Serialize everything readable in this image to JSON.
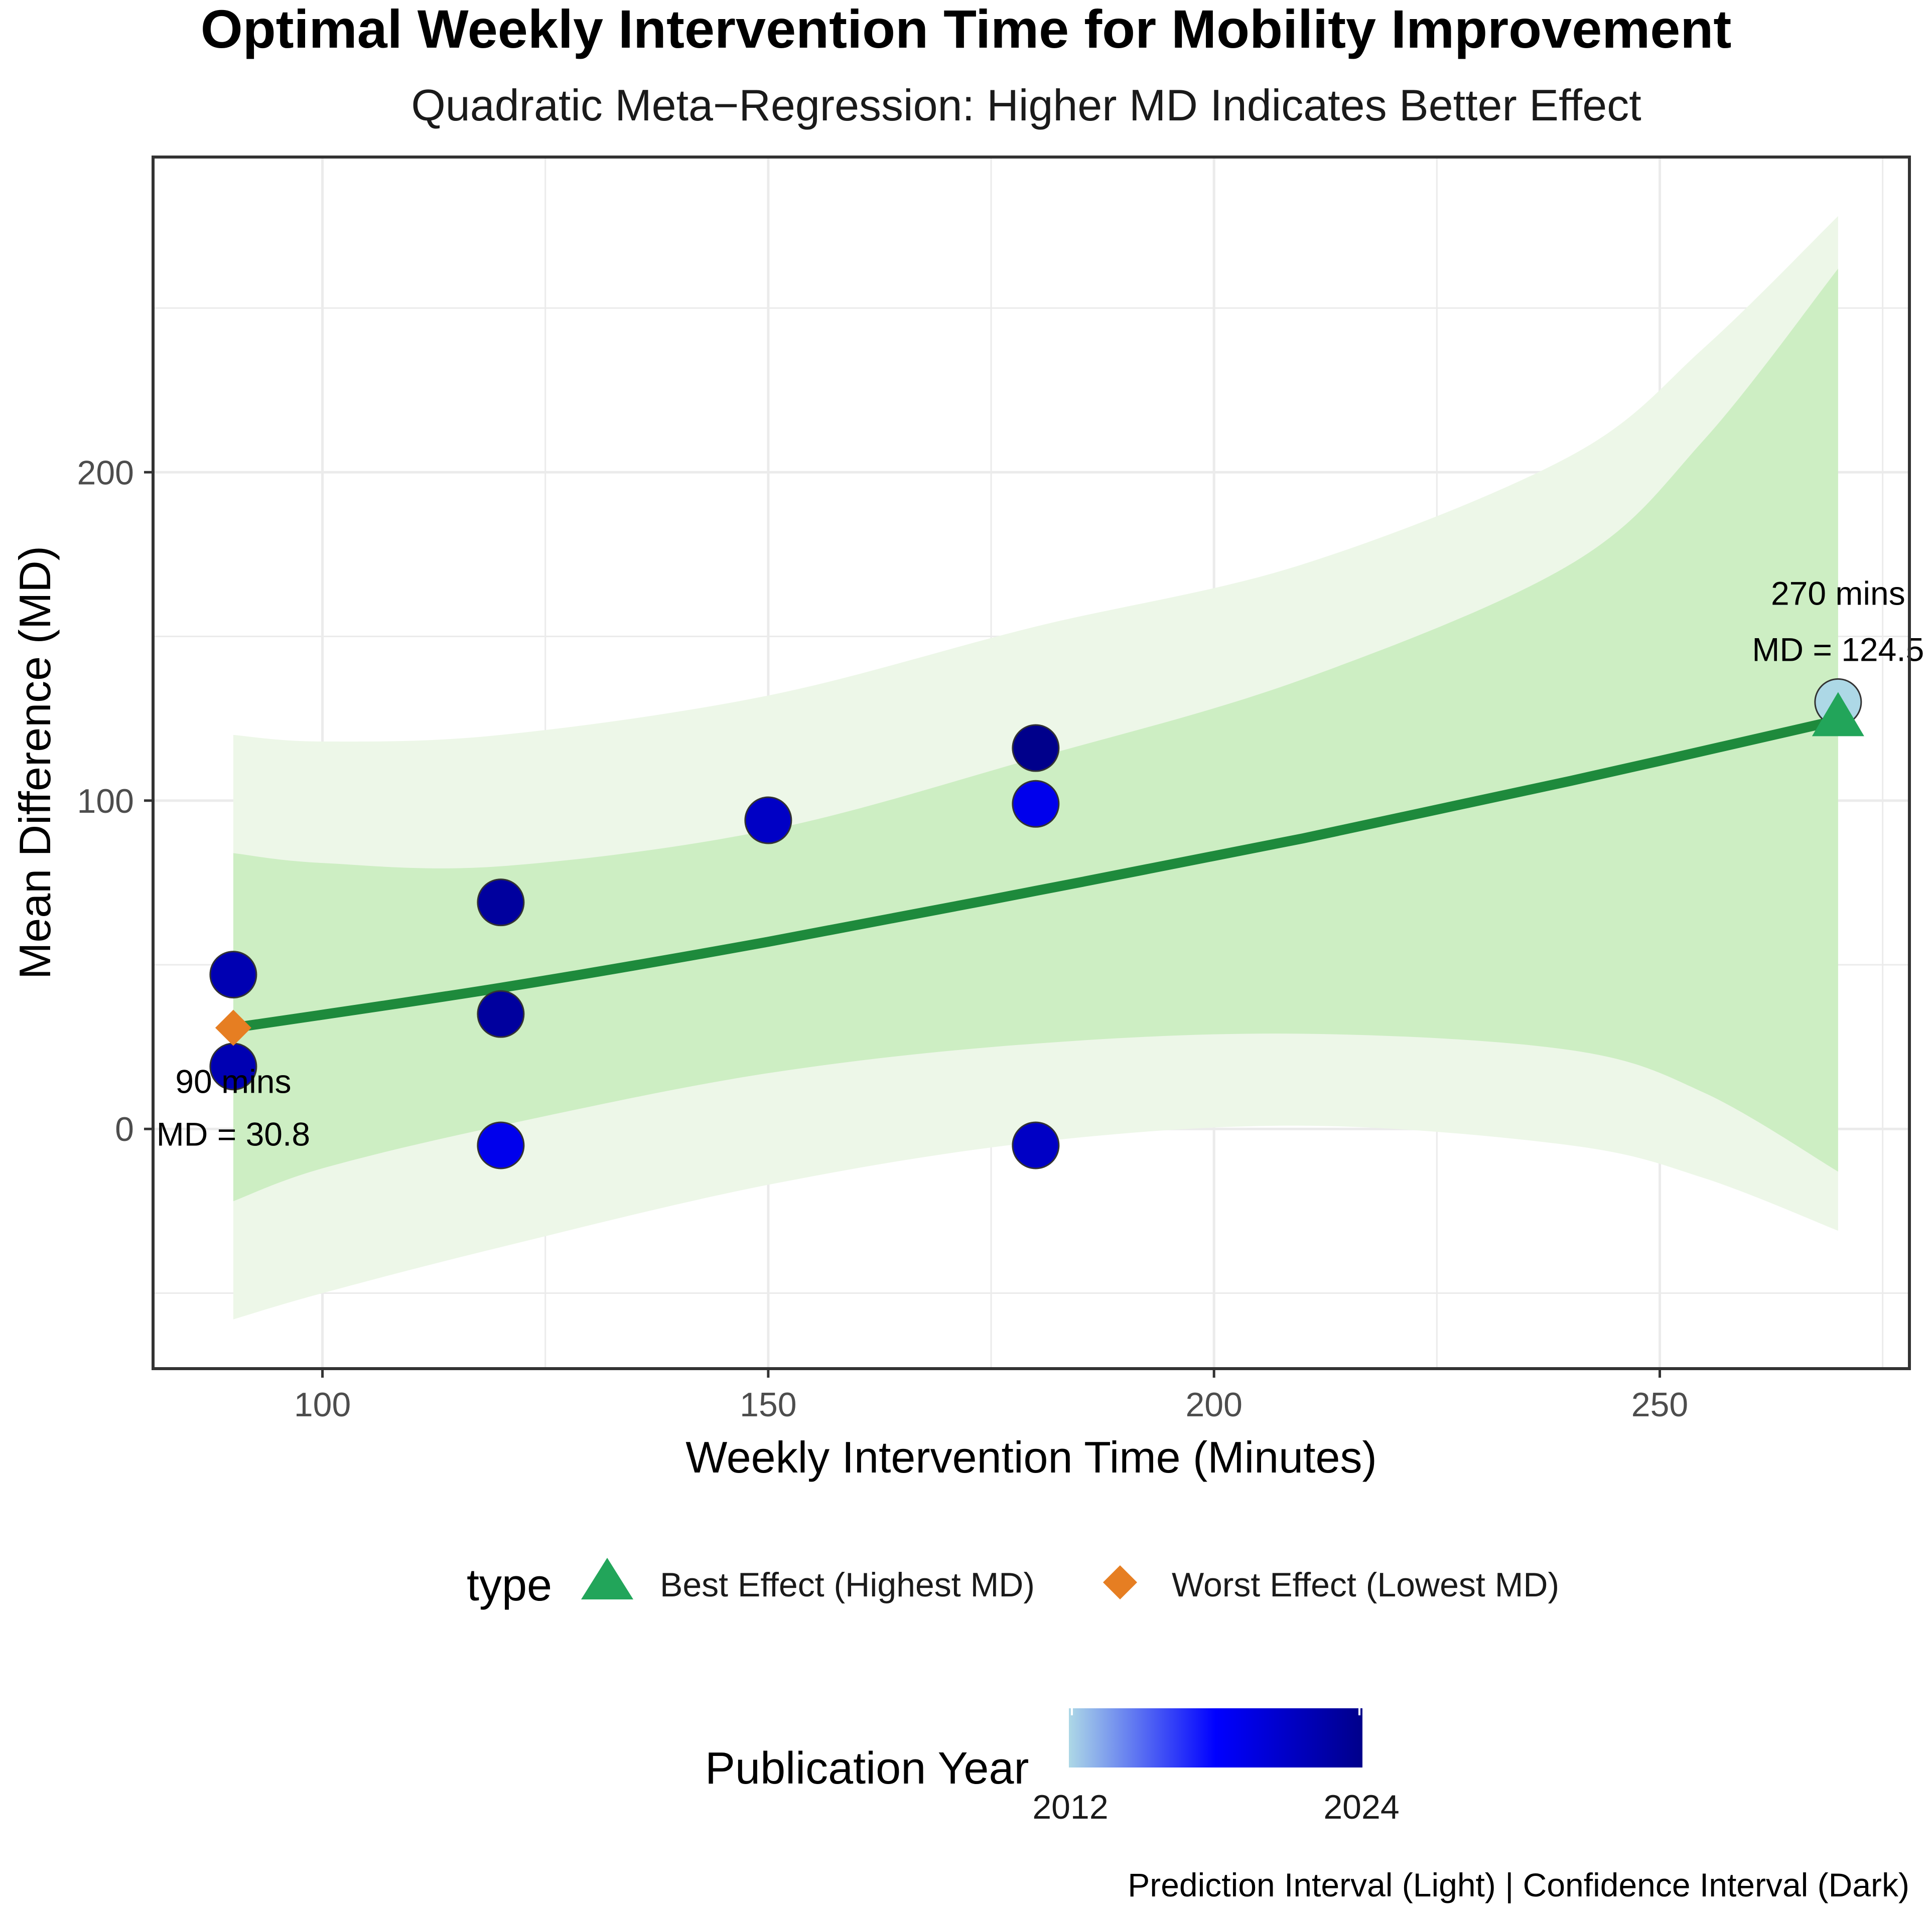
{
  "chart_data": {
    "type": "scatter",
    "title": "Optimal Weekly Intervention Time for Mobility Improvement",
    "subtitle": "Quadratic Meta−Regression: Higher MD Indicates Better Effect",
    "xlabel": "Weekly Intervention Time (Minutes)",
    "ylabel": "Mean Difference (MD)",
    "xlim": [
      81,
      278
    ],
    "ylim": [
      -73,
      296
    ],
    "x_ticks": [
      {
        "value": 100,
        "label": "100"
      },
      {
        "value": 150,
        "label": "150"
      },
      {
        "value": 200,
        "label": "200"
      },
      {
        "value": 250,
        "label": "250"
      }
    ],
    "y_ticks": [
      {
        "value": 0,
        "label": "0"
      },
      {
        "value": 100,
        "label": "100"
      },
      {
        "value": 200,
        "label": "200"
      }
    ],
    "x_minor": [
      125,
      175,
      225,
      275
    ],
    "y_minor": [
      -50,
      50,
      150,
      250
    ],
    "grid": true,
    "points": [
      {
        "x": 90,
        "y": 47,
        "year": 2022
      },
      {
        "x": 90,
        "y": 19,
        "year": 2022
      },
      {
        "x": 120,
        "y": 69,
        "year": 2023
      },
      {
        "x": 120,
        "y": 35,
        "year": 2023
      },
      {
        "x": 120,
        "y": -5,
        "year": 2019
      },
      {
        "x": 150,
        "y": 94,
        "year": 2021
      },
      {
        "x": 180,
        "y": 116,
        "year": 2024
      },
      {
        "x": 180,
        "y": 99,
        "year": 2019
      },
      {
        "x": 180,
        "y": -5,
        "year": 2021
      },
      {
        "x": 270,
        "y": 130,
        "year": 2012
      }
    ],
    "fit_line": {
      "x": [
        90,
        120,
        150,
        180,
        210,
        240,
        270
      ],
      "y": [
        30.8,
        43,
        57,
        72.5,
        88.5,
        106,
        124.5
      ],
      "color": "#1e8a3c"
    },
    "confidence_interval": {
      "x": [
        90,
        100,
        120,
        150,
        180,
        210,
        240,
        255,
        270
      ],
      "lower": [
        -22,
        -12,
        1,
        17,
        26,
        29,
        24,
        11,
        -13
      ],
      "upper": [
        84,
        81,
        80,
        91,
        113,
        137,
        172,
        210,
        262
      ]
    },
    "prediction_interval": {
      "x": [
        90,
        100,
        120,
        150,
        180,
        210,
        240,
        255,
        270
      ],
      "lower": [
        -58,
        -50,
        -36,
        -17,
        -4,
        1,
        -5,
        -15,
        -31
      ],
      "upper": [
        120,
        118,
        120,
        132,
        153,
        172,
        205,
        238,
        278
      ]
    },
    "highlights": [
      {
        "type": "Best Effect (Highest MD)",
        "x": 270,
        "y": 124.5,
        "shape": "triangle",
        "color": "#22a55a"
      },
      {
        "type": "Worst Effect (Lowest MD)",
        "x": 90,
        "y": 30.8,
        "shape": "diamond",
        "color": "#e67e22"
      }
    ],
    "annotations": [
      {
        "x": 270,
        "y": 124.5,
        "line1": "270 mins",
        "line2": "MD = 124.5"
      },
      {
        "x": 90,
        "y": 30.8,
        "line1": "90 mins",
        "line2": "MD = 30.8"
      }
    ],
    "legend": {
      "type_title": "type",
      "items": [
        {
          "label": "Best Effect (Highest MD)",
          "shape": "triangle",
          "color": "#22a55a"
        },
        {
          "label": "Worst Effect (Lowest MD)",
          "shape": "diamond",
          "color": "#e67e22"
        }
      ],
      "colorbar_title": "Publication Year",
      "colorbar_min": "2012",
      "colorbar_max": "2024",
      "colorbar_colors": [
        "#add8e6",
        "#0000ff",
        "#00008b"
      ],
      "placement": "bottom"
    },
    "caption": "Prediction Interval (Light) | Confidence Interval (Dark)",
    "colors": {
      "ci_fill": "#cdeec3",
      "pi_fill": "#edf7e8",
      "panel_border": "#333333",
      "grid": "#ebebeb"
    }
  }
}
